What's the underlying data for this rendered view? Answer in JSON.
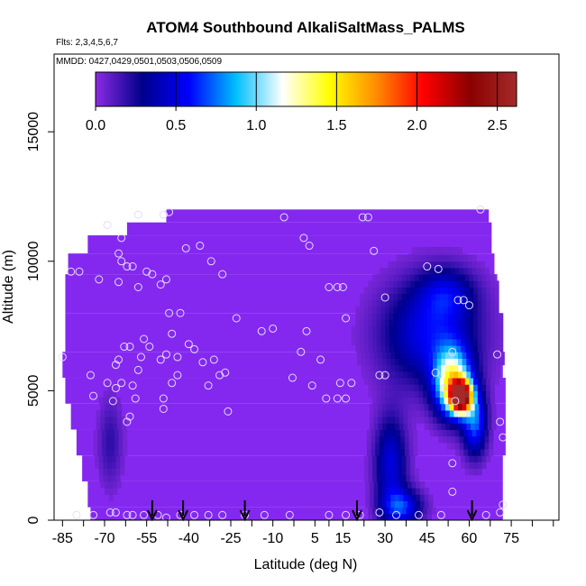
{
  "chart_data": {
    "type": "heatmap",
    "title": "ATOM4 Southbound AlkaliSaltMass_PALMS",
    "notes": [
      "Flts: 2,3,4,5,6,7",
      "MMDD: 0427,0429,0501,0503,0506,0509"
    ],
    "xlabel": "Latitude (deg N)",
    "ylabel": "Altitude (m)",
    "xlim": [
      -88,
      92
    ],
    "ylim": [
      0,
      18000
    ],
    "x_ticks": [
      -85,
      -70,
      -55,
      -40,
      -25,
      -10,
      5,
      15,
      30,
      45,
      60,
      75
    ],
    "x_tick_labels": [
      "-85",
      "-70",
      "-55",
      "-40",
      "-25",
      "-10",
      "5",
      "15",
      "30",
      "45",
      "60",
      "75"
    ],
    "x_minor_ticks": [
      -77.5,
      -62.5,
      -47.5,
      -32.5,
      -17.5,
      -2.5,
      10,
      22.5,
      37.5,
      52.5,
      67.5,
      82.5,
      90
    ],
    "y_ticks": [
      0,
      5000,
      10000,
      15000
    ],
    "y_tick_labels": [
      "0",
      "5000",
      "10000",
      "15000"
    ],
    "colorbar": {
      "range": [
        0,
        2.62
      ],
      "ticks": [
        0,
        0.5,
        1,
        1.5,
        2,
        2.5
      ],
      "tick_labels": [
        "0.0",
        "0.5",
        "1.0",
        "1.5",
        "2.0",
        "2.5"
      ],
      "placement": "top",
      "colors": [
        "#8a2be2",
        "#00008b",
        "#0000ff",
        "#00bfff",
        "#ffffff",
        "#ffff00",
        "#ff8c00",
        "#ff0000",
        "#8b0000",
        "#a52a2a"
      ]
    },
    "background_color": "#8428f0",
    "field_rows": [
      {
        "ylo": 0,
        "yhi": 500,
        "xmin": -75,
        "xmax": 72
      },
      {
        "ylo": 500,
        "yhi": 1500,
        "xmin": -76,
        "xmax": 72
      },
      {
        "ylo": 1500,
        "yhi": 2500,
        "xmin": -78,
        "xmax": 72
      },
      {
        "ylo": 2500,
        "yhi": 3500,
        "xmin": -80,
        "xmax": 73
      },
      {
        "ylo": 3500,
        "yhi": 4500,
        "xmin": -82,
        "xmax": 73
      },
      {
        "ylo": 4500,
        "yhi": 5500,
        "xmin": -84,
        "xmax": 73
      },
      {
        "ylo": 5500,
        "yhi": 6500,
        "xmin": -85,
        "xmax": 72
      },
      {
        "ylo": 6500,
        "yhi": 8000,
        "xmin": -84,
        "xmax": 71
      },
      {
        "ylo": 8000,
        "yhi": 9500,
        "xmin": -84,
        "xmax": 70
      },
      {
        "ylo": 9500,
        "yhi": 10300,
        "xmin": -83,
        "xmax": 69
      },
      {
        "ylo": 10300,
        "yhi": 11000,
        "xmin": -76,
        "xmax": 68
      },
      {
        "ylo": 11000,
        "yhi": 11500,
        "xmin": -62,
        "xmax": 68
      },
      {
        "ylo": 11500,
        "yhi": 12000,
        "xmin": -48,
        "xmax": 67
      }
    ],
    "hotspots": [
      {
        "lat": 57,
        "alt": 4800,
        "peak": 2.6,
        "sx": 2.5,
        "sy": 400
      },
      {
        "lat": 54,
        "alt": 5300,
        "peak": 1.3,
        "sx": 4.5,
        "sy": 900
      },
      {
        "lat": 46,
        "alt": 7200,
        "peak": 0.55,
        "sx": 12,
        "sy": 1400
      },
      {
        "lat": 52,
        "alt": 8800,
        "peak": 0.35,
        "sx": 7,
        "sy": 700
      },
      {
        "lat": 32,
        "alt": 2200,
        "peak": 0.5,
        "sx": 4,
        "sy": 1300
      },
      {
        "lat": 36,
        "alt": 500,
        "peak": 0.6,
        "sx": 5,
        "sy": 500
      },
      {
        "lat": -68,
        "alt": 3000,
        "peak": 0.2,
        "sx": 3,
        "sy": 1200
      },
      {
        "lat": 62,
        "alt": 3800,
        "peak": 0.7,
        "sx": 3,
        "sy": 900
      }
    ],
    "markers": [
      {
        "lat": -53,
        "label": "arrow"
      },
      {
        "lat": -42,
        "label": "arrow"
      },
      {
        "lat": -20,
        "label": "arrow"
      },
      {
        "lat": 20,
        "label": "arrow"
      },
      {
        "lat": 61,
        "label": "arrow"
      }
    ],
    "points": [
      {
        "x": -85,
        "y": 6300
      },
      {
        "x": -82,
        "y": 9600
      },
      {
        "x": -79,
        "y": 9600
      },
      {
        "x": -75,
        "y": 5600
      },
      {
        "x": -74,
        "y": 4800
      },
      {
        "x": -72,
        "y": 9300
      },
      {
        "x": -69,
        "y": 5300
      },
      {
        "x": -67,
        "y": 4600
      },
      {
        "x": -66,
        "y": 6000
      },
      {
        "x": -65,
        "y": 6200
      },
      {
        "x": -64,
        "y": 5300
      },
      {
        "x": -66,
        "y": 5100
      },
      {
        "x": -63,
        "y": 6700
      },
      {
        "x": -61,
        "y": 6700
      },
      {
        "x": -60,
        "y": 5200
      },
      {
        "x": -58,
        "y": 5800
      },
      {
        "x": -57,
        "y": 6300
      },
      {
        "x": -56,
        "y": 7000
      },
      {
        "x": -54,
        "y": 6700
      },
      {
        "x": -59,
        "y": 4700
      },
      {
        "x": -61,
        "y": 4000
      },
      {
        "x": -62,
        "y": 3800
      },
      {
        "x": -65,
        "y": 10300
      },
      {
        "x": -64,
        "y": 10000
      },
      {
        "x": -62,
        "y": 9800
      },
      {
        "x": -65,
        "y": 9200
      },
      {
        "x": -60,
        "y": 9800
      },
      {
        "x": -58,
        "y": 9000
      },
      {
        "x": -55,
        "y": 9600
      },
      {
        "x": -53,
        "y": 9500
      },
      {
        "x": -50,
        "y": 9100
      },
      {
        "x": -48,
        "y": 9300
      },
      {
        "x": -47,
        "y": 8000
      },
      {
        "x": -43,
        "y": 8000
      },
      {
        "x": -46,
        "y": 7200
      },
      {
        "x": -44,
        "y": 6300
      },
      {
        "x": -40,
        "y": 6800
      },
      {
        "x": -38,
        "y": 6600
      },
      {
        "x": -35,
        "y": 6100
      },
      {
        "x": -33,
        "y": 5200
      },
      {
        "x": -31,
        "y": 6200
      },
      {
        "x": -29,
        "y": 5600
      },
      {
        "x": -27,
        "y": 5700
      },
      {
        "x": -26,
        "y": 4200
      },
      {
        "x": -50,
        "y": 6200
      },
      {
        "x": -48,
        "y": 6400
      },
      {
        "x": -49,
        "y": 4700
      },
      {
        "x": -49,
        "y": 4300
      },
      {
        "x": -46,
        "y": 5300
      },
      {
        "x": -44,
        "y": 5600
      },
      {
        "x": -41,
        "y": 10500
      },
      {
        "x": -36,
        "y": 10600
      },
      {
        "x": -32,
        "y": 10000
      },
      {
        "x": -28,
        "y": 9500
      },
      {
        "x": -23,
        "y": 7800
      },
      {
        "x": -14,
        "y": 7300
      },
      {
        "x": -10,
        "y": 7400
      },
      {
        "x": -6,
        "y": 11700
      },
      {
        "x": 1,
        "y": 10900
      },
      {
        "x": 3,
        "y": 10600
      },
      {
        "x": 2,
        "y": 7300
      },
      {
        "x": 0,
        "y": 6500
      },
      {
        "x": -3,
        "y": 5500
      },
      {
        "x": 4,
        "y": 5200
      },
      {
        "x": 7,
        "y": 6200
      },
      {
        "x": 9,
        "y": 4700
      },
      {
        "x": 10,
        "y": 9000
      },
      {
        "x": 13,
        "y": 9000
      },
      {
        "x": 15,
        "y": 9000
      },
      {
        "x": 16,
        "y": 7800
      },
      {
        "x": 14,
        "y": 5300
      },
      {
        "x": 13,
        "y": 4700
      },
      {
        "x": 16,
        "y": 4700
      },
      {
        "x": 18,
        "y": 5300
      },
      {
        "x": 24,
        "y": 11700
      },
      {
        "x": 26,
        "y": 10400
      },
      {
        "x": 28,
        "y": 5600
      },
      {
        "x": 30,
        "y": 5600
      },
      {
        "x": 48,
        "y": 5700
      },
      {
        "x": 45,
        "y": 9800
      },
      {
        "x": 49,
        "y": 9700
      },
      {
        "x": 51,
        "y": 5100
      },
      {
        "x": 54,
        "y": 6500
      },
      {
        "x": 56,
        "y": 8500
      },
      {
        "x": 58,
        "y": 8500
      },
      {
        "x": 60,
        "y": 8300
      },
      {
        "x": 55,
        "y": 4600
      },
      {
        "x": 54,
        "y": 2200
      },
      {
        "x": 54,
        "y": 1100
      },
      {
        "x": 64,
        "y": 12000
      },
      {
        "x": 70,
        "y": 6400
      },
      {
        "x": 71,
        "y": 3800
      },
      {
        "x": 72,
        "y": 3200
      },
      {
        "x": 72,
        "y": 600
      },
      {
        "x": 71,
        "y": 300
      },
      {
        "x": 66,
        "y": 200
      },
      {
        "x": -80,
        "y": 200
      },
      {
        "x": -74,
        "y": 200
      },
      {
        "x": -68,
        "y": 300
      },
      {
        "x": -66,
        "y": 300
      },
      {
        "x": -62,
        "y": 200
      },
      {
        "x": -60,
        "y": 200
      },
      {
        "x": -56,
        "y": 200
      },
      {
        "x": -51,
        "y": 200
      },
      {
        "x": -48,
        "y": 100
      },
      {
        "x": -43,
        "y": 200
      },
      {
        "x": -38,
        "y": 200
      },
      {
        "x": -33,
        "y": 200
      },
      {
        "x": -28,
        "y": 200
      },
      {
        "x": -20,
        "y": 200
      },
      {
        "x": -13,
        "y": 200
      },
      {
        "x": -4,
        "y": 200
      },
      {
        "x": 10,
        "y": 200
      },
      {
        "x": 16,
        "y": 200
      },
      {
        "x": 21,
        "y": 200
      },
      {
        "x": 28,
        "y": 300
      },
      {
        "x": 34,
        "y": 200
      },
      {
        "x": 42,
        "y": 200
      },
      {
        "x": 50,
        "y": 200
      },
      {
        "x": -69,
        "y": 11400
      },
      {
        "x": -64,
        "y": 10900
      },
      {
        "x": -58,
        "y": 11800
      },
      {
        "x": -49,
        "y": 11800
      },
      {
        "x": -47,
        "y": 11900
      },
      {
        "x": 22,
        "y": 11700
      },
      {
        "x": 30,
        "y": 8600
      }
    ]
  }
}
